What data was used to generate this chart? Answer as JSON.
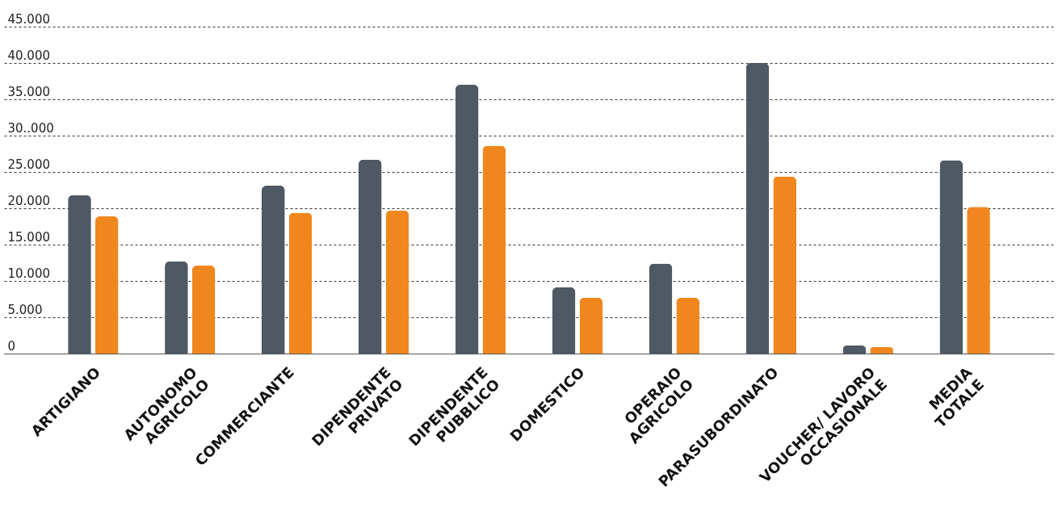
{
  "chart_data": {
    "type": "bar",
    "categories": [
      "ARTIGIANO",
      "AUTONOMO\nAGRICOLO",
      "COMMERCIANTE",
      "DIPENDENTE\nPRIVATO",
      "DIPENDENTE\nPUBBLICO",
      "DOMESTICO",
      "OPERAIO\nAGRICOLO",
      "PARASUBORDINATO",
      "VOUCHER/ LAVORO\nOCCASIONALE",
      "MEDIA\nTOTALE"
    ],
    "series": [
      {
        "color": "#4f5964",
        "values": [
          21800,
          12700,
          23100,
          26700,
          37000,
          9100,
          12400,
          40000,
          1100,
          26600
        ]
      },
      {
        "color": "#f0871e",
        "values": [
          18900,
          12100,
          19400,
          19700,
          28600,
          7700,
          7700,
          24400,
          900,
          20200
        ]
      }
    ],
    "ylim": [
      0,
      45000
    ],
    "yticks": [
      {
        "value": 0,
        "label": "0"
      },
      {
        "value": 5000,
        "label": "5.000"
      },
      {
        "value": 10000,
        "label": "10.000"
      },
      {
        "value": 15000,
        "label": "15.000"
      },
      {
        "value": 20000,
        "label": "20.000"
      },
      {
        "value": 25000,
        "label": "25.000"
      },
      {
        "value": 30000,
        "label": "30..000"
      },
      {
        "value": 35000,
        "label": "35.000"
      },
      {
        "value": 40000,
        "label": "40.000"
      },
      {
        "value": 45000,
        "label": "45.000"
      }
    ],
    "grid": "y",
    "legend": false
  }
}
